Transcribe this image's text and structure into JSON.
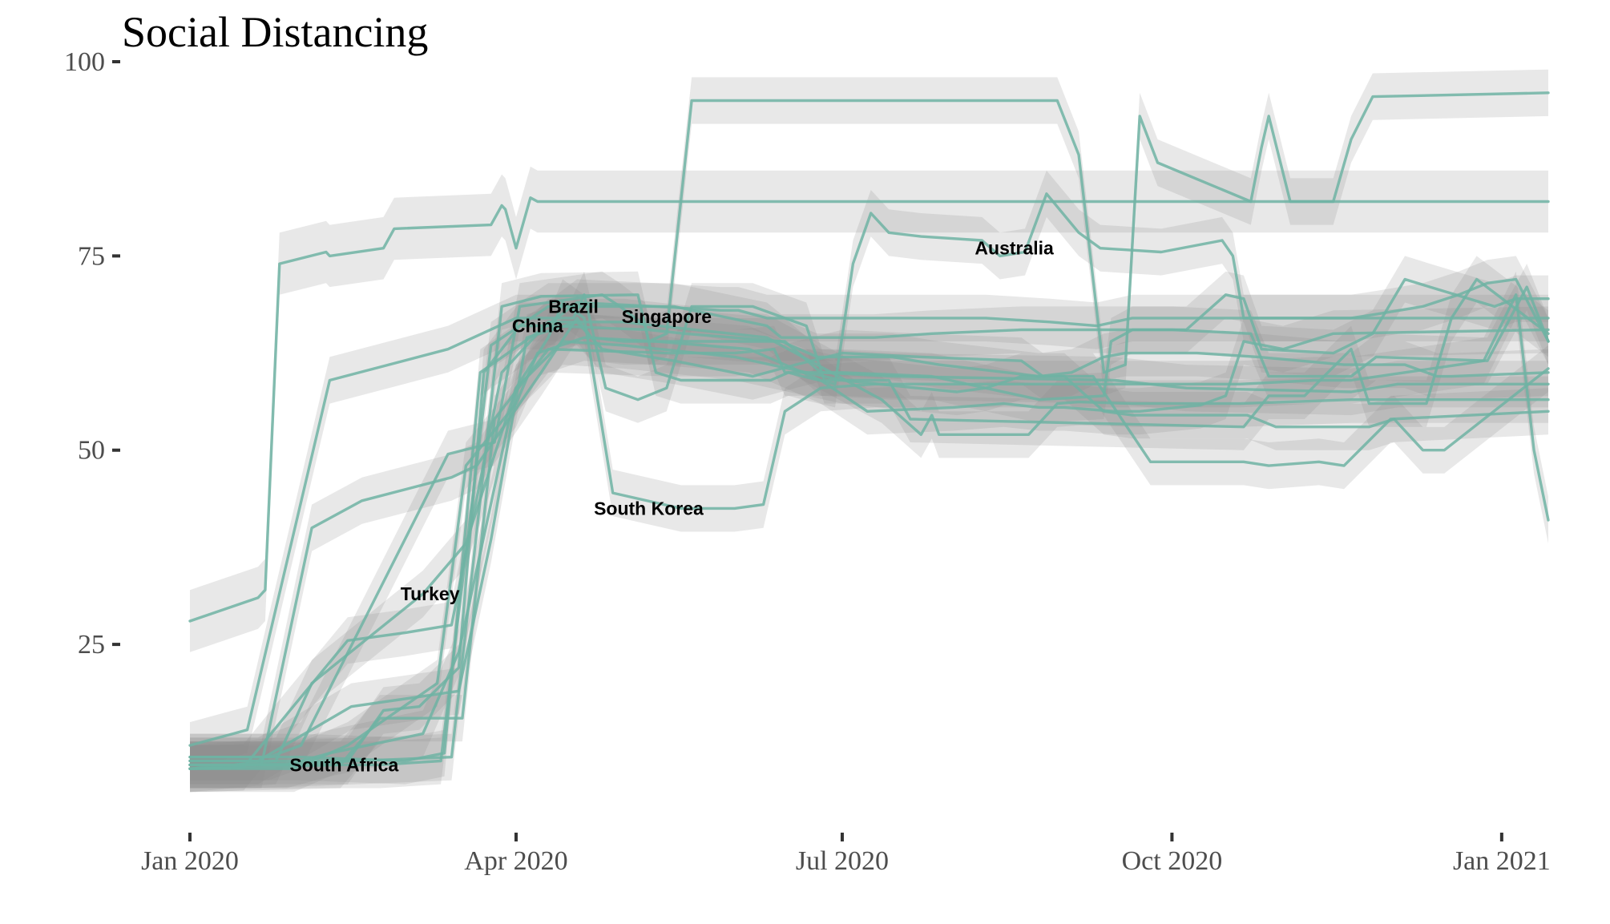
{
  "chart_data": {
    "type": "line",
    "title": "Social Distancing",
    "xlabel": "",
    "ylabel": "",
    "grid": false,
    "legend": "none",
    "x_ticks": [
      "Jan 2020",
      "Apr 2020",
      "Jul 2020",
      "Oct 2020",
      "Jan 2021"
    ],
    "y_ticks": [
      25,
      50,
      75,
      100
    ],
    "xlim": [
      "2020-01-01",
      "2021-01-14"
    ],
    "ylim": [
      5,
      100
    ],
    "colors": {
      "line": "#6fb3a3",
      "band": "#8c8c8c"
    },
    "annotations": [
      {
        "label": "Australia",
        "x": "2020-08-18",
        "y": 76
      },
      {
        "label": "Brazil",
        "x": "2020-04-17",
        "y": 68.5
      },
      {
        "label": "China",
        "x": "2020-04-07",
        "y": 66
      },
      {
        "label": "Singapore",
        "x": "2020-05-13",
        "y": 67.2
      },
      {
        "label": "South Korea",
        "x": "2020-05-08",
        "y": 42.5
      },
      {
        "label": "Turkey",
        "x": "2020-03-08",
        "y": 31.5
      },
      {
        "label": "South Africa",
        "x": "2020-02-13",
        "y": 9.5
      }
    ],
    "series": [
      {
        "x": [
          "2020-01-01",
          "2020-01-20",
          "2020-01-22",
          "2020-01-26",
          "2020-02-08",
          "2020-02-09",
          "2020-02-24",
          "2020-02-27",
          "2020-03-25",
          "2020-03-28",
          "2020-03-29",
          "2020-04-01",
          "2020-04-05",
          "2020-04-07",
          "2021-01-14"
        ],
        "values": [
          28,
          31,
          32,
          74,
          75.5,
          75,
          76,
          78.5,
          79,
          81.5,
          81,
          76,
          82.5,
          82,
          82
        ],
        "band": 4
      },
      {
        "x": [
          "2020-01-01",
          "2020-01-18",
          "2020-02-06",
          "2020-03-14",
          "2020-03-28",
          "2020-04-08",
          "2020-05-05",
          "2020-05-08",
          "2020-05-13",
          "2020-05-20",
          "2020-08-30",
          "2020-09-05",
          "2020-09-12",
          "2020-09-18",
          "2020-09-22",
          "2020-09-27",
          "2020-10-23",
          "2020-10-26",
          "2020-10-28",
          "2020-11-03",
          "2020-11-15",
          "2020-11-20",
          "2020-11-26",
          "2021-01-14"
        ],
        "values": [
          9.5,
          9.5,
          9.8,
          10.5,
          68.5,
          69.8,
          70,
          64,
          65,
          95,
          95,
          88,
          60,
          61,
          93,
          87,
          82,
          89,
          93,
          82,
          82,
          90,
          95.5,
          96
        ],
        "band": 3
      },
      {
        "x": [
          "2020-01-01",
          "2020-01-23",
          "2020-02-01",
          "2020-03-13",
          "2020-03-26",
          "2020-04-02",
          "2020-04-25",
          "2020-04-30",
          "2020-05-07",
          "2020-05-10",
          "2020-05-17",
          "2020-06-11",
          "2020-06-16",
          "2020-06-20",
          "2020-06-29",
          "2020-07-04",
          "2020-07-09",
          "2020-07-14",
          "2020-07-23",
          "2020-08-09",
          "2020-08-14",
          "2020-08-21",
          "2020-08-27",
          "2020-09-05",
          "2020-09-11",
          "2020-09-28",
          "2020-10-15",
          "2020-10-18",
          "2020-10-21",
          "2020-10-24",
          "2021-01-14"
        ],
        "values": [
          10.5,
          10.5,
          12,
          49.5,
          51,
          68.5,
          70,
          68.5,
          66,
          60,
          59,
          59,
          60,
          59.5,
          58.5,
          74,
          80.5,
          78,
          77.5,
          77,
          75,
          75.5,
          83,
          78,
          76,
          75.5,
          77,
          75,
          67,
          67,
          67
        ],
        "band": 3
      },
      {
        "x": [
          "2020-01-01",
          "2020-01-13",
          "2020-01-17",
          "2020-02-09",
          "2020-03-13",
          "2020-04-01",
          "2020-04-17",
          "2020-04-20",
          "2020-04-26",
          "2020-05-05",
          "2020-05-13",
          "2020-05-20",
          "2020-06-06",
          "2020-06-21",
          "2020-06-26",
          "2020-07-14",
          "2020-07-20",
          "2020-10-21",
          "2020-10-28",
          "2020-11-07",
          "2020-11-20",
          "2020-11-25",
          "2020-12-11",
          "2020-12-18",
          "2020-12-25",
          "2021-01-14"
        ],
        "values": [
          12,
          13.5,
          14,
          59,
          63,
          67,
          67,
          70,
          58,
          56.5,
          58,
          68.5,
          68.5,
          66,
          59,
          59,
          54,
          53,
          57,
          57,
          63,
          56,
          56,
          67,
          72,
          65
        ],
        "band": 3
      },
      {
        "x": [
          "2020-01-01",
          "2020-01-20",
          "2020-02-15",
          "2020-03-16",
          "2020-03-25",
          "2020-04-04",
          "2020-04-18",
          "2020-04-25",
          "2020-05-15",
          "2020-06-06",
          "2020-06-18",
          "2020-07-01",
          "2020-07-23",
          "2020-08-20",
          "2020-08-26",
          "2020-09-09",
          "2020-09-25",
          "2020-10-05",
          "2020-10-21",
          "2020-10-28",
          "2020-11-11",
          "2020-11-18",
          "2020-12-01",
          "2021-01-14"
        ],
        "values": [
          10,
          10,
          17,
          19,
          38.5,
          64.5,
          66.5,
          63,
          61.5,
          59.5,
          61,
          62.5,
          62,
          61.5,
          59.5,
          59.5,
          48.5,
          48.5,
          48.5,
          48,
          48.5,
          48,
          54,
          55
        ],
        "band": 3
      },
      {
        "x": [
          "2020-01-01",
          "2020-01-30",
          "2020-02-14",
          "2020-03-10",
          "2020-03-18",
          "2020-04-01",
          "2020-04-07",
          "2020-04-20",
          "2020-05-10",
          "2020-06-05",
          "2020-06-25",
          "2020-07-08",
          "2020-08-01",
          "2020-08-15",
          "2020-08-25",
          "2020-09-01",
          "2020-09-15",
          "2020-09-22",
          "2020-10-09",
          "2020-10-16",
          "2020-10-21",
          "2020-11-01",
          "2020-11-15",
          "2021-01-14"
        ],
        "values": [
          9,
          9,
          12,
          20,
          48,
          56,
          62.5,
          64.5,
          64,
          63,
          59,
          55,
          55.5,
          56,
          55.5,
          55.5,
          55,
          55,
          55.8,
          57,
          64,
          63,
          65,
          65.5
        ],
        "band": 3
      },
      {
        "x": [
          "2020-01-01",
          "2020-01-25",
          "2020-02-04",
          "2020-03-06",
          "2020-03-18",
          "2020-04-01",
          "2020-04-14",
          "2020-05-01",
          "2020-06-01",
          "2020-07-01",
          "2020-07-22",
          "2020-08-02",
          "2020-08-10",
          "2020-08-20",
          "2020-09-01",
          "2020-09-12",
          "2020-09-20",
          "2020-10-22",
          "2020-10-30",
          "2020-11-15",
          "2020-11-25",
          "2020-12-02",
          "2020-12-10",
          "2020-12-16",
          "2021-01-14"
        ],
        "values": [
          9,
          10,
          20,
          31.5,
          38,
          58,
          64,
          63.5,
          62,
          59,
          58,
          57.5,
          58,
          59.5,
          59.5,
          55,
          54.5,
          54.5,
          53,
          53,
          53,
          54,
          50,
          50,
          60.5
        ],
        "band": 3
      },
      {
        "x": [
          "2020-01-01",
          "2020-01-16",
          "2020-01-28",
          "2020-02-14",
          "2020-03-01",
          "2020-03-14",
          "2020-03-28",
          "2020-04-10",
          "2020-05-01",
          "2020-06-10",
          "2020-07-12",
          "2020-07-23",
          "2020-07-26",
          "2020-07-28",
          "2020-08-22",
          "2020-08-30",
          "2020-09-05",
          "2020-09-20",
          "2020-10-20",
          "2020-11-20",
          "2020-11-26",
          "2020-12-22",
          "2021-01-14"
        ],
        "values": [
          9,
          9.2,
          16,
          25.5,
          26.5,
          27.5,
          60,
          66.5,
          66.5,
          64.5,
          56.5,
          52,
          54.5,
          52,
          52,
          56,
          56.2,
          56,
          56,
          56.5,
          56.5,
          56.5,
          56.5
        ],
        "band": 3
      },
      {
        "x": [
          "2020-01-01",
          "2020-02-14",
          "2020-02-24",
          "2020-03-05",
          "2020-03-16",
          "2020-03-23",
          "2020-04-02",
          "2020-04-10",
          "2020-05-08",
          "2020-05-18",
          "2020-06-14",
          "2020-06-24",
          "2020-07-15",
          "2020-07-28",
          "2020-08-25",
          "2020-09-03",
          "2020-09-12",
          "2020-09-18",
          "2020-10-08",
          "2020-10-25",
          "2020-11-18",
          "2020-12-05",
          "2020-12-14",
          "2020-12-18",
          "2021-01-14"
        ],
        "values": [
          10,
          10,
          16.5,
          17,
          22,
          60,
          66,
          66,
          65.5,
          65,
          64,
          62,
          62,
          61,
          59.5,
          60,
          62,
          62.5,
          62.5,
          62,
          61,
          61,
          59.5,
          59.5,
          60
        ],
        "band": 3
      },
      {
        "x": [
          "2020-01-01",
          "2020-02-23",
          "2020-03-11",
          "2020-03-25",
          "2020-04-10",
          "2020-05-15",
          "2020-06-10",
          "2020-06-14",
          "2020-07-10",
          "2020-07-26",
          "2020-08-20",
          "2020-09-12",
          "2020-10-01",
          "2020-10-23",
          "2020-10-28",
          "2020-11-20",
          "2020-11-27",
          "2020-12-28",
          "2021-01-08",
          "2021-01-14"
        ],
        "values": [
          9.5,
          9.5,
          10,
          63.5,
          68.5,
          68.5,
          66,
          64.5,
          64.5,
          65,
          65.5,
          65.5,
          65.5,
          65,
          59.5,
          59.5,
          62,
          61.5,
          71,
          64
        ],
        "band": 3
      },
      {
        "x": [
          "2020-01-01",
          "2020-01-21",
          "2020-02-04",
          "2020-02-18",
          "2020-03-14",
          "2020-03-21",
          "2020-04-08",
          "2020-04-18",
          "2020-04-22",
          "2020-05-01",
          "2020-06-15",
          "2020-06-25",
          "2020-07-15",
          "2020-09-15",
          "2020-10-05",
          "2020-11-20",
          "2020-12-03",
          "2021-01-14"
        ],
        "values": [
          9.5,
          9.5,
          40,
          43.5,
          46.5,
          48,
          60,
          67,
          64.5,
          64,
          64,
          60,
          59.5,
          59,
          58,
          57.5,
          58.5,
          58.5
        ],
        "band": 3
      },
      {
        "x": [
          "2020-01-01",
          "2020-01-28",
          "2020-02-09",
          "2020-03-06",
          "2020-03-16",
          "2020-04-01",
          "2020-04-10",
          "2020-04-14",
          "2020-04-20",
          "2020-04-28",
          "2020-05-17",
          "2020-06-01",
          "2020-06-09",
          "2020-06-15",
          "2020-06-25",
          "2020-07-10",
          "2020-07-24",
          "2020-08-25",
          "2020-10-20",
          "2020-11-10",
          "2020-11-20",
          "2020-12-05",
          "2020-12-20",
          "2020-12-27",
          "2021-01-05",
          "2021-01-10",
          "2021-01-14"
        ],
        "values": [
          9.5,
          9.5,
          11,
          13.5,
          24,
          58,
          64.5,
          69,
          67,
          44.5,
          42.5,
          42.5,
          43,
          55,
          58,
          58.5,
          58.5,
          58.5,
          58.5,
          59,
          59,
          60,
          61,
          61.5,
          70,
          50,
          41
        ],
        "band": 3
      },
      {
        "x": [
          "2020-01-01",
          "2020-02-12",
          "2020-02-23",
          "2020-03-17",
          "2020-03-26",
          "2020-04-10",
          "2020-05-13",
          "2020-06-01",
          "2020-06-12",
          "2020-06-15",
          "2020-07-01",
          "2020-07-26",
          "2020-08-10",
          "2020-08-25",
          "2020-09-12",
          "2020-09-14",
          "2020-09-20",
          "2020-10-05",
          "2020-10-16",
          "2020-10-21",
          "2020-10-26",
          "2020-11-15",
          "2020-11-26",
          "2020-12-05",
          "2020-12-12",
          "2020-12-30",
          "2021-01-05",
          "2021-01-14"
        ],
        "values": [
          9,
          9.5,
          15.5,
          15.5,
          54,
          63,
          62.5,
          62.5,
          63,
          60,
          60,
          59.5,
          58,
          56.5,
          57,
          64,
          65.5,
          65.5,
          70,
          69.5,
          63,
          62.5,
          65,
          72,
          71,
          68.5,
          69.5,
          69.5
        ],
        "band": 3
      },
      {
        "x": [
          "2020-01-01",
          "2020-02-01",
          "2020-03-01",
          "2020-03-12",
          "2020-03-22",
          "2020-04-08",
          "2020-04-18",
          "2020-05-10",
          "2020-05-28",
          "2020-06-02",
          "2020-06-10",
          "2020-07-10",
          "2020-08-10",
          "2020-08-28",
          "2020-09-10",
          "2020-09-20",
          "2020-10-25",
          "2020-11-20",
          "2020-11-27",
          "2020-12-10",
          "2020-12-20",
          "2020-12-28",
          "2021-01-05",
          "2021-01-14"
        ],
        "values": [
          10.5,
          10.5,
          10,
          11,
          60,
          65.5,
          69,
          68.5,
          68,
          68,
          67,
          67,
          67,
          66.5,
          66,
          67,
          67,
          67,
          67.5,
          68.5,
          70,
          71.5,
          72,
          64
        ],
        "band": 3
      }
    ]
  }
}
